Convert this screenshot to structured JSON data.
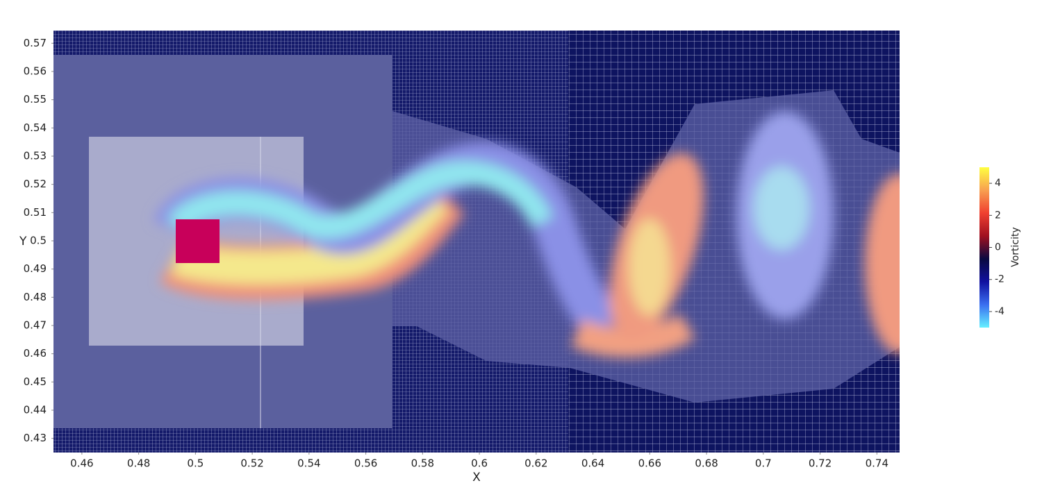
{
  "chart_data": {
    "type": "field",
    "x_label": "X",
    "y_label": "Y",
    "xlim": [
      0.45,
      0.748
    ],
    "ylim": [
      0.425,
      0.5745
    ],
    "xticks": [
      0.46,
      0.48,
      0.5,
      0.52,
      0.54,
      0.56,
      0.58,
      0.6,
      0.62,
      0.64,
      0.66,
      0.68,
      0.7,
      0.72,
      0.74
    ],
    "yticks": [
      0.43,
      0.44,
      0.45,
      0.46,
      0.47,
      0.48,
      0.49,
      0.5,
      0.51,
      0.52,
      0.53,
      0.54,
      0.55,
      0.56,
      0.57
    ],
    "colorbar": {
      "title": "Vorticity",
      "lim": [
        -5,
        5
      ],
      "ticks": [
        -4,
        -2,
        0,
        2,
        4
      ],
      "colors": [
        "#66f0ff",
        "#3a6ff0",
        "#1010a0",
        "#0a0a40",
        "#a01020",
        "#f04030",
        "#f8a050",
        "#ffff40"
      ]
    }
  }
}
